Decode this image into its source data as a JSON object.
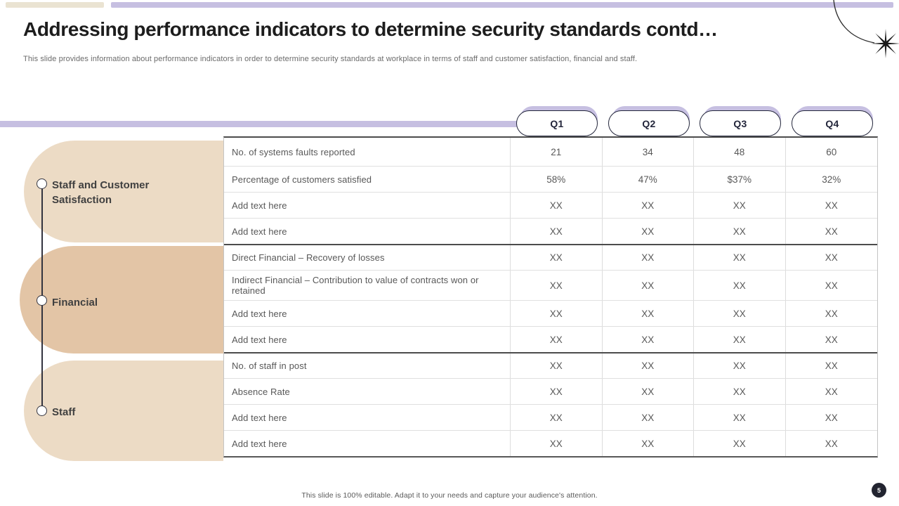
{
  "slide": {
    "title": "Addressing performance indicators to determine security standards contd…",
    "subtitle": "This slide provides information about performance indicators in order to determine security standards at workplace in terms of staff and customer satisfaction, financial and staff.",
    "footer": "This slide is 100% editable. Adapt it to your needs and capture your audience's attention.",
    "page_number": "5"
  },
  "colors": {
    "lavender_accent": "#c6bfe1",
    "beige_light": "#ecdbc5",
    "beige_dark": "#e3c5a6",
    "dark_navy": "#23263b",
    "table_text_gray": "#585858",
    "section_divider": "#4c4c4c"
  },
  "quarters": [
    "Q1",
    "Q2",
    "Q3",
    "Q4"
  ],
  "categories": [
    {
      "label": "Staff and Customer Satisfaction"
    },
    {
      "label": "Financial"
    },
    {
      "label": "Staff"
    }
  ],
  "table": {
    "section_start_rows": [
      4,
      8
    ],
    "rows": [
      {
        "label": "No. of systems faults reported",
        "values": [
          "21",
          "34",
          "48",
          "60"
        ]
      },
      {
        "label": "Percentage of customers satisfied",
        "values": [
          "58%",
          "47%",
          "$37%",
          "32%"
        ]
      },
      {
        "label": "Add text here",
        "values": [
          "XX",
          "XX",
          "XX",
          "XX"
        ]
      },
      {
        "label": "Add text here",
        "values": [
          "XX",
          "XX",
          "XX",
          "XX"
        ]
      },
      {
        "label": "Direct Financial – Recovery of losses",
        "values": [
          "XX",
          "XX",
          "XX",
          "XX"
        ]
      },
      {
        "label": "Indirect Financial – Contribution to value of contracts won or retained",
        "values": [
          "XX",
          "XX",
          "XX",
          "XX"
        ]
      },
      {
        "label": "Add text here",
        "values": [
          "XX",
          "XX",
          "XX",
          "XX"
        ]
      },
      {
        "label": "Add text here",
        "values": [
          "XX",
          "XX",
          "XX",
          "XX"
        ]
      },
      {
        "label": "No. of staff in post",
        "values": [
          "XX",
          "XX",
          "XX",
          "XX"
        ]
      },
      {
        "label": "Absence Rate",
        "values": [
          "XX",
          "XX",
          "XX",
          "XX"
        ]
      },
      {
        "label": "Add text here",
        "values": [
          "XX",
          "XX",
          "XX",
          "XX"
        ]
      },
      {
        "label": "Add text here",
        "values": [
          "XX",
          "XX",
          "XX",
          "XX"
        ]
      }
    ]
  }
}
